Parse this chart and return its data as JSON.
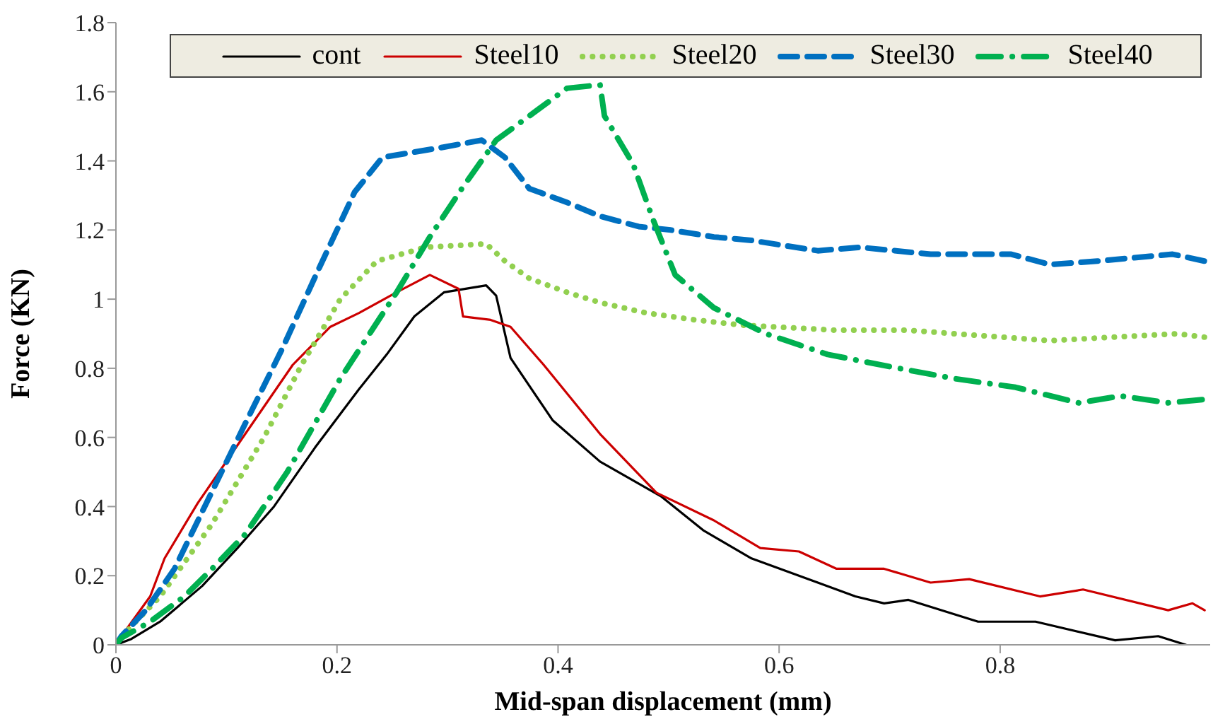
{
  "chart_data": {
    "type": "line",
    "xlabel": "Mid-span displacement (mm)",
    "ylabel": "Force (KN)",
    "xlim": [
      0,
      0.99
    ],
    "ylim": [
      0,
      1.8
    ],
    "xticks": [
      0,
      0.2,
      0.4,
      0.6,
      0.8
    ],
    "yticks": [
      0,
      0.2,
      0.4,
      0.6,
      0.8,
      1,
      1.2,
      1.4,
      1.6,
      1.8
    ],
    "grid": false,
    "legend": "top",
    "marker": "none",
    "series": [
      {
        "name": "cont",
        "color": "#000000",
        "line_style": "solid",
        "x": [
          0,
          0.014,
          0.04,
          0.078,
          0.11,
          0.143,
          0.18,
          0.22,
          0.245,
          0.27,
          0.297,
          0.335,
          0.344,
          0.357,
          0.395,
          0.438,
          0.493,
          0.532,
          0.575,
          0.635,
          0.669,
          0.695,
          0.717,
          0.78,
          0.832,
          0.904,
          0.943,
          0.968
        ],
        "values": [
          0,
          0.017,
          0.067,
          0.17,
          0.28,
          0.4,
          0.57,
          0.74,
          0.84,
          0.95,
          1.02,
          1.04,
          1.01,
          0.83,
          0.65,
          0.53,
          0.43,
          0.33,
          0.25,
          0.18,
          0.14,
          0.12,
          0.13,
          0.067,
          0.067,
          0.013,
          0.025,
          0
        ]
      },
      {
        "name": "Steel10",
        "color": "#cc0000",
        "line_style": "solid",
        "x": [
          0,
          0.005,
          0.031,
          0.044,
          0.074,
          0.117,
          0.16,
          0.194,
          0.22,
          0.254,
          0.284,
          0.31,
          0.314,
          0.339,
          0.357,
          0.387,
          0.438,
          0.489,
          0.541,
          0.583,
          0.618,
          0.652,
          0.695,
          0.737,
          0.772,
          0.836,
          0.875,
          0.952,
          0.974,
          0.985
        ],
        "values": [
          0,
          0.025,
          0.14,
          0.25,
          0.41,
          0.61,
          0.81,
          0.92,
          0.96,
          1.02,
          1.07,
          1.03,
          0.95,
          0.94,
          0.92,
          0.81,
          0.61,
          0.44,
          0.36,
          0.28,
          0.27,
          0.22,
          0.22,
          0.18,
          0.19,
          0.14,
          0.16,
          0.1,
          0.12,
          0.1
        ]
      },
      {
        "name": "Steel20",
        "color": "#92d050",
        "line_style": "dotted",
        "x": [
          0,
          0.014,
          0.04,
          0.087,
          0.134,
          0.168,
          0.203,
          0.236,
          0.28,
          0.335,
          0.352,
          0.374,
          0.408,
          0.438,
          0.48,
          0.524,
          0.566,
          0.652,
          0.717,
          0.759,
          0.845,
          0.96,
          0.985
        ],
        "values": [
          0,
          0.054,
          0.14,
          0.35,
          0.6,
          0.81,
          1,
          1.11,
          1.15,
          1.16,
          1.11,
          1.06,
          1.02,
          0.99,
          0.96,
          0.94,
          0.925,
          0.91,
          0.91,
          0.9,
          0.88,
          0.9,
          0.89
        ]
      },
      {
        "name": "Steel30",
        "color": "#0070c0",
        "line_style": "dashed",
        "x": [
          0,
          0.005,
          0.027,
          0.053,
          0.091,
          0.117,
          0.151,
          0.181,
          0.216,
          0.241,
          0.297,
          0.331,
          0.352,
          0.374,
          0.408,
          0.438,
          0.473,
          0.502,
          0.541,
          0.575,
          0.635,
          0.673,
          0.737,
          0.81,
          0.845,
          0.888,
          0.956,
          0.985
        ],
        "values": [
          0,
          0.025,
          0.1,
          0.22,
          0.47,
          0.64,
          0.86,
          1.07,
          1.31,
          1.41,
          1.44,
          1.46,
          1.41,
          1.32,
          1.28,
          1.24,
          1.21,
          1.2,
          1.18,
          1.17,
          1.14,
          1.15,
          1.13,
          1.13,
          1.1,
          1.11,
          1.13,
          1.11
        ]
      },
      {
        "name": "Steel40",
        "color": "#00b050",
        "line_style": "dashdot",
        "x": [
          0,
          0.005,
          0.031,
          0.062,
          0.087,
          0.117,
          0.155,
          0.203,
          0.254,
          0.284,
          0.313,
          0.344,
          0.374,
          0.408,
          0.438,
          0.442,
          0.468,
          0.486,
          0.506,
          0.541,
          0.588,
          0.644,
          0.708,
          0.759,
          0.814,
          0.871,
          0.909,
          0.952,
          0.985
        ],
        "values": [
          0,
          0.02,
          0.067,
          0.14,
          0.22,
          0.32,
          0.5,
          0.77,
          1.02,
          1.18,
          1.32,
          1.46,
          1.53,
          1.61,
          1.62,
          1.53,
          1.39,
          1.23,
          1.07,
          0.975,
          0.9,
          0.84,
          0.8,
          0.77,
          0.745,
          0.7,
          0.72,
          0.7,
          0.71
        ]
      }
    ]
  }
}
